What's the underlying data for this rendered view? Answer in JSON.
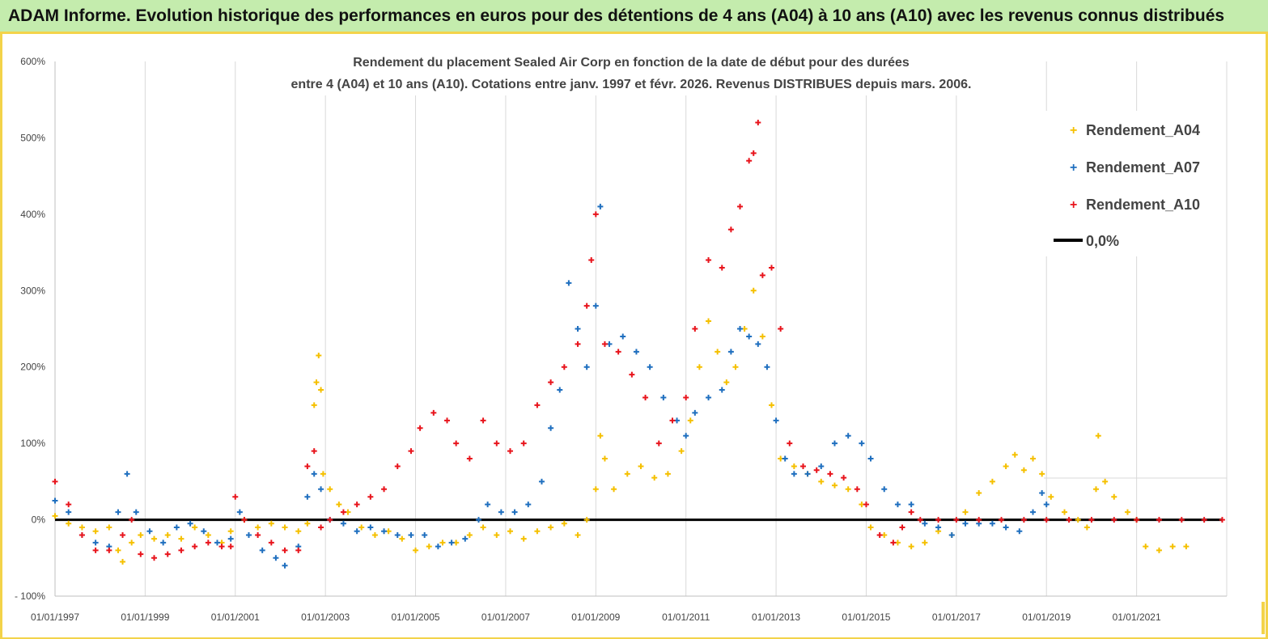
{
  "header": {
    "title": "ADAM Informe. Evolution historique des performances en euros pour des détentions de 4 ans (A04) à 10 ans (A10) avec les revenus connus distribués"
  },
  "chart_data": {
    "type": "scatter",
    "title_line1": "Rendement du placement Sealed  Air Corp en fonction de la date de début pour des durées",
    "title_line2": "entre 4 (A04) et 10 ans (A10).  Cotations entre janv. 1997 et févr. 2026. Revenus  DISTRIBUES depuis mars. 2006.",
    "ylim": [
      -100,
      600
    ],
    "yticks": [
      -100,
      0,
      100,
      200,
      300,
      400,
      500,
      600
    ],
    "ytick_labels": [
      "- 100%",
      "0%",
      "100%",
      "200%",
      "300%",
      "400%",
      "500%",
      "600%"
    ],
    "xlim": [
      1997.0,
      2023.0
    ],
    "xticks": [
      1997,
      1999,
      2001,
      2003,
      2005,
      2007,
      2009,
      2011,
      2013,
      2015,
      2017,
      2019,
      2021
    ],
    "xtick_labels": [
      "01/01/1997",
      "01/01/1999",
      "01/01/2001",
      "01/01/2003",
      "01/01/2005",
      "01/01/2007",
      "01/01/2009",
      "01/01/2011",
      "01/01/2013",
      "01/01/2015",
      "01/01/2017",
      "01/01/2019",
      "01/01/2021"
    ],
    "grid": "vertical",
    "legend_position": "top-right",
    "series": [
      {
        "name": "Rendement_A04",
        "color": "#f5c000",
        "points": [
          [
            1997.0,
            5
          ],
          [
            1997.3,
            -5
          ],
          [
            1997.6,
            -10
          ],
          [
            1997.9,
            -15
          ],
          [
            1998.2,
            -10
          ],
          [
            1998.4,
            -40
          ],
          [
            1998.5,
            -55
          ],
          [
            1998.7,
            -30
          ],
          [
            1998.9,
            -20
          ],
          [
            1999.2,
            -25
          ],
          [
            1999.5,
            -20
          ],
          [
            1999.8,
            -25
          ],
          [
            2000.1,
            -10
          ],
          [
            2000.4,
            -20
          ],
          [
            2000.7,
            -30
          ],
          [
            2000.9,
            -15
          ],
          [
            2001.2,
            0
          ],
          [
            2001.5,
            -10
          ],
          [
            2001.8,
            -5
          ],
          [
            2002.1,
            -10
          ],
          [
            2002.4,
            -15
          ],
          [
            2002.6,
            -5
          ],
          [
            2002.75,
            150
          ],
          [
            2002.8,
            180
          ],
          [
            2002.85,
            215
          ],
          [
            2002.9,
            170
          ],
          [
            2002.95,
            60
          ],
          [
            2003.1,
            40
          ],
          [
            2003.3,
            20
          ],
          [
            2003.5,
            10
          ],
          [
            2003.8,
            -10
          ],
          [
            2004.1,
            -20
          ],
          [
            2004.4,
            -15
          ],
          [
            2004.7,
            -25
          ],
          [
            2005.0,
            -40
          ],
          [
            2005.3,
            -35
          ],
          [
            2005.6,
            -30
          ],
          [
            2005.9,
            -30
          ],
          [
            2006.2,
            -20
          ],
          [
            2006.5,
            -10
          ],
          [
            2006.8,
            -20
          ],
          [
            2007.1,
            -15
          ],
          [
            2007.4,
            -25
          ],
          [
            2007.7,
            -15
          ],
          [
            2008.0,
            -10
          ],
          [
            2008.3,
            -5
          ],
          [
            2008.6,
            -20
          ],
          [
            2008.8,
            0
          ],
          [
            2009.0,
            40
          ],
          [
            2009.1,
            110
          ],
          [
            2009.2,
            80
          ],
          [
            2009.4,
            40
          ],
          [
            2009.7,
            60
          ],
          [
            2010.0,
            70
          ],
          [
            2010.3,
            55
          ],
          [
            2010.6,
            60
          ],
          [
            2010.9,
            90
          ],
          [
            2011.1,
            130
          ],
          [
            2011.3,
            200
          ],
          [
            2011.5,
            260
          ],
          [
            2011.7,
            220
          ],
          [
            2011.9,
            180
          ],
          [
            2012.1,
            200
          ],
          [
            2012.3,
            250
          ],
          [
            2012.5,
            300
          ],
          [
            2012.7,
            240
          ],
          [
            2012.9,
            150
          ],
          [
            2013.1,
            80
          ],
          [
            2013.4,
            70
          ],
          [
            2013.7,
            60
          ],
          [
            2014.0,
            50
          ],
          [
            2014.3,
            45
          ],
          [
            2014.6,
            40
          ],
          [
            2014.9,
            20
          ],
          [
            2015.1,
            -10
          ],
          [
            2015.4,
            -20
          ],
          [
            2015.7,
            -30
          ],
          [
            2016.0,
            -35
          ],
          [
            2016.3,
            -30
          ],
          [
            2016.6,
            -15
          ],
          [
            2016.9,
            -20
          ],
          [
            2017.2,
            10
          ],
          [
            2017.5,
            35
          ],
          [
            2017.8,
            50
          ],
          [
            2018.1,
            70
          ],
          [
            2018.3,
            85
          ],
          [
            2018.5,
            65
          ],
          [
            2018.7,
            80
          ],
          [
            2018.9,
            60
          ],
          [
            2019.1,
            30
          ],
          [
            2019.4,
            10
          ],
          [
            2019.7,
            0
          ],
          [
            2019.9,
            -10
          ],
          [
            2020.1,
            40
          ],
          [
            2020.15,
            110
          ],
          [
            2020.3,
            50
          ],
          [
            2020.5,
            30
          ],
          [
            2020.8,
            10
          ],
          [
            2021.0,
            0
          ],
          [
            2021.2,
            -35
          ],
          [
            2021.5,
            -40
          ],
          [
            2021.8,
            -35
          ],
          [
            2022.1,
            -35
          ]
        ]
      },
      {
        "name": "Rendement_A07",
        "color": "#1f6fbf",
        "points": [
          [
            1997.0,
            25
          ],
          [
            1997.3,
            10
          ],
          [
            1997.6,
            -20
          ],
          [
            1997.9,
            -30
          ],
          [
            1998.2,
            -35
          ],
          [
            1998.4,
            10
          ],
          [
            1998.6,
            60
          ],
          [
            1998.8,
            10
          ],
          [
            1999.1,
            -15
          ],
          [
            1999.4,
            -30
          ],
          [
            1999.7,
            -10
          ],
          [
            2000.0,
            -5
          ],
          [
            2000.3,
            -15
          ],
          [
            2000.6,
            -30
          ],
          [
            2000.9,
            -25
          ],
          [
            2001.1,
            10
          ],
          [
            2001.3,
            -20
          ],
          [
            2001.6,
            -40
          ],
          [
            2001.9,
            -50
          ],
          [
            2002.1,
            -60
          ],
          [
            2002.4,
            -35
          ],
          [
            2002.6,
            30
          ],
          [
            2002.75,
            60
          ],
          [
            2002.9,
            40
          ],
          [
            2003.1,
            0
          ],
          [
            2003.4,
            -5
          ],
          [
            2003.7,
            -15
          ],
          [
            2004.0,
            -10
          ],
          [
            2004.3,
            -15
          ],
          [
            2004.6,
            -20
          ],
          [
            2004.9,
            -20
          ],
          [
            2005.2,
            -20
          ],
          [
            2005.5,
            -35
          ],
          [
            2005.8,
            -30
          ],
          [
            2006.1,
            -25
          ],
          [
            2006.4,
            0
          ],
          [
            2006.6,
            20
          ],
          [
            2006.9,
            10
          ],
          [
            2007.2,
            10
          ],
          [
            2007.5,
            20
          ],
          [
            2007.8,
            50
          ],
          [
            2008.0,
            120
          ],
          [
            2008.2,
            170
          ],
          [
            2008.4,
            310
          ],
          [
            2008.6,
            250
          ],
          [
            2008.8,
            200
          ],
          [
            2009.0,
            280
          ],
          [
            2009.1,
            410
          ],
          [
            2009.3,
            230
          ],
          [
            2009.6,
            240
          ],
          [
            2009.9,
            220
          ],
          [
            2010.2,
            200
          ],
          [
            2010.5,
            160
          ],
          [
            2010.8,
            130
          ],
          [
            2011.0,
            110
          ],
          [
            2011.2,
            140
          ],
          [
            2011.5,
            160
          ],
          [
            2011.8,
            170
          ],
          [
            2012.0,
            220
          ],
          [
            2012.2,
            250
          ],
          [
            2012.4,
            240
          ],
          [
            2012.6,
            230
          ],
          [
            2012.8,
            200
          ],
          [
            2013.0,
            130
          ],
          [
            2013.2,
            80
          ],
          [
            2013.4,
            60
          ],
          [
            2013.7,
            60
          ],
          [
            2014.0,
            70
          ],
          [
            2014.3,
            100
          ],
          [
            2014.6,
            110
          ],
          [
            2014.9,
            100
          ],
          [
            2015.1,
            80
          ],
          [
            2015.4,
            40
          ],
          [
            2015.7,
            20
          ],
          [
            2016.0,
            20
          ],
          [
            2016.3,
            -5
          ],
          [
            2016.6,
            -10
          ],
          [
            2016.9,
            -20
          ],
          [
            2017.2,
            -5
          ],
          [
            2017.5,
            -5
          ],
          [
            2017.8,
            -5
          ],
          [
            2018.1,
            -10
          ],
          [
            2018.4,
            -15
          ],
          [
            2018.7,
            10
          ],
          [
            2018.9,
            35
          ],
          [
            2019.0,
            20
          ]
        ]
      },
      {
        "name": "Rendement_A10",
        "color": "#e8141c",
        "points": [
          [
            1997.0,
            50
          ],
          [
            1997.3,
            20
          ],
          [
            1997.6,
            -20
          ],
          [
            1997.9,
            -40
          ],
          [
            1998.2,
            -40
          ],
          [
            1998.5,
            -20
          ],
          [
            1998.7,
            0
          ],
          [
            1998.9,
            -45
          ],
          [
            1999.2,
            -50
          ],
          [
            1999.5,
            -45
          ],
          [
            1999.8,
            -40
          ],
          [
            2000.1,
            -35
          ],
          [
            2000.4,
            -30
          ],
          [
            2000.7,
            -35
          ],
          [
            2000.9,
            -35
          ],
          [
            2001.0,
            30
          ],
          [
            2001.2,
            0
          ],
          [
            2001.5,
            -20
          ],
          [
            2001.8,
            -30
          ],
          [
            2002.1,
            -40
          ],
          [
            2002.4,
            -40
          ],
          [
            2002.6,
            70
          ],
          [
            2002.75,
            90
          ],
          [
            2002.9,
            -10
          ],
          [
            2003.1,
            0
          ],
          [
            2003.4,
            10
          ],
          [
            2003.7,
            20
          ],
          [
            2004.0,
            30
          ],
          [
            2004.3,
            40
          ],
          [
            2004.6,
            70
          ],
          [
            2004.9,
            90
          ],
          [
            2005.1,
            120
          ],
          [
            2005.4,
            140
          ],
          [
            2005.7,
            130
          ],
          [
            2005.9,
            100
          ],
          [
            2006.2,
            80
          ],
          [
            2006.5,
            130
          ],
          [
            2006.8,
            100
          ],
          [
            2007.1,
            90
          ],
          [
            2007.4,
            100
          ],
          [
            2007.7,
            150
          ],
          [
            2008.0,
            180
          ],
          [
            2008.3,
            200
          ],
          [
            2008.6,
            230
          ],
          [
            2008.8,
            280
          ],
          [
            2008.9,
            340
          ],
          [
            2009.0,
            400
          ],
          [
            2009.2,
            230
          ],
          [
            2009.5,
            220
          ],
          [
            2009.8,
            190
          ],
          [
            2010.1,
            160
          ],
          [
            2010.4,
            100
          ],
          [
            2010.7,
            130
          ],
          [
            2011.0,
            160
          ],
          [
            2011.2,
            250
          ],
          [
            2011.5,
            340
          ],
          [
            2011.8,
            330
          ],
          [
            2012.0,
            380
          ],
          [
            2012.2,
            410
          ],
          [
            2012.4,
            470
          ],
          [
            2012.5,
            480
          ],
          [
            2012.6,
            520
          ],
          [
            2012.7,
            320
          ],
          [
            2012.9,
            330
          ],
          [
            2013.1,
            250
          ],
          [
            2013.3,
            100
          ],
          [
            2013.6,
            70
          ],
          [
            2013.9,
            65
          ],
          [
            2014.2,
            60
          ],
          [
            2014.5,
            55
          ],
          [
            2014.8,
            40
          ],
          [
            2015.0,
            20
          ],
          [
            2015.3,
            -20
          ],
          [
            2015.6,
            -30
          ],
          [
            2015.8,
            -10
          ],
          [
            2016.0,
            10
          ],
          [
            2016.2,
            0
          ],
          [
            2016.6,
            0
          ],
          [
            2017.0,
            0
          ],
          [
            2017.5,
            0
          ],
          [
            2018.0,
            0
          ],
          [
            2018.5,
            0
          ],
          [
            2019.0,
            0
          ],
          [
            2019.5,
            0
          ],
          [
            2020.0,
            0
          ],
          [
            2020.5,
            0
          ],
          [
            2021.0,
            0
          ],
          [
            2021.5,
            0
          ],
          [
            2022.0,
            0
          ],
          [
            2022.5,
            0
          ],
          [
            2022.9,
            0
          ]
        ]
      },
      {
        "name": "0,0%",
        "color": "#000000",
        "line": [
          [
            1997.0,
            0
          ],
          [
            2022.9,
            0
          ]
        ]
      }
    ]
  }
}
